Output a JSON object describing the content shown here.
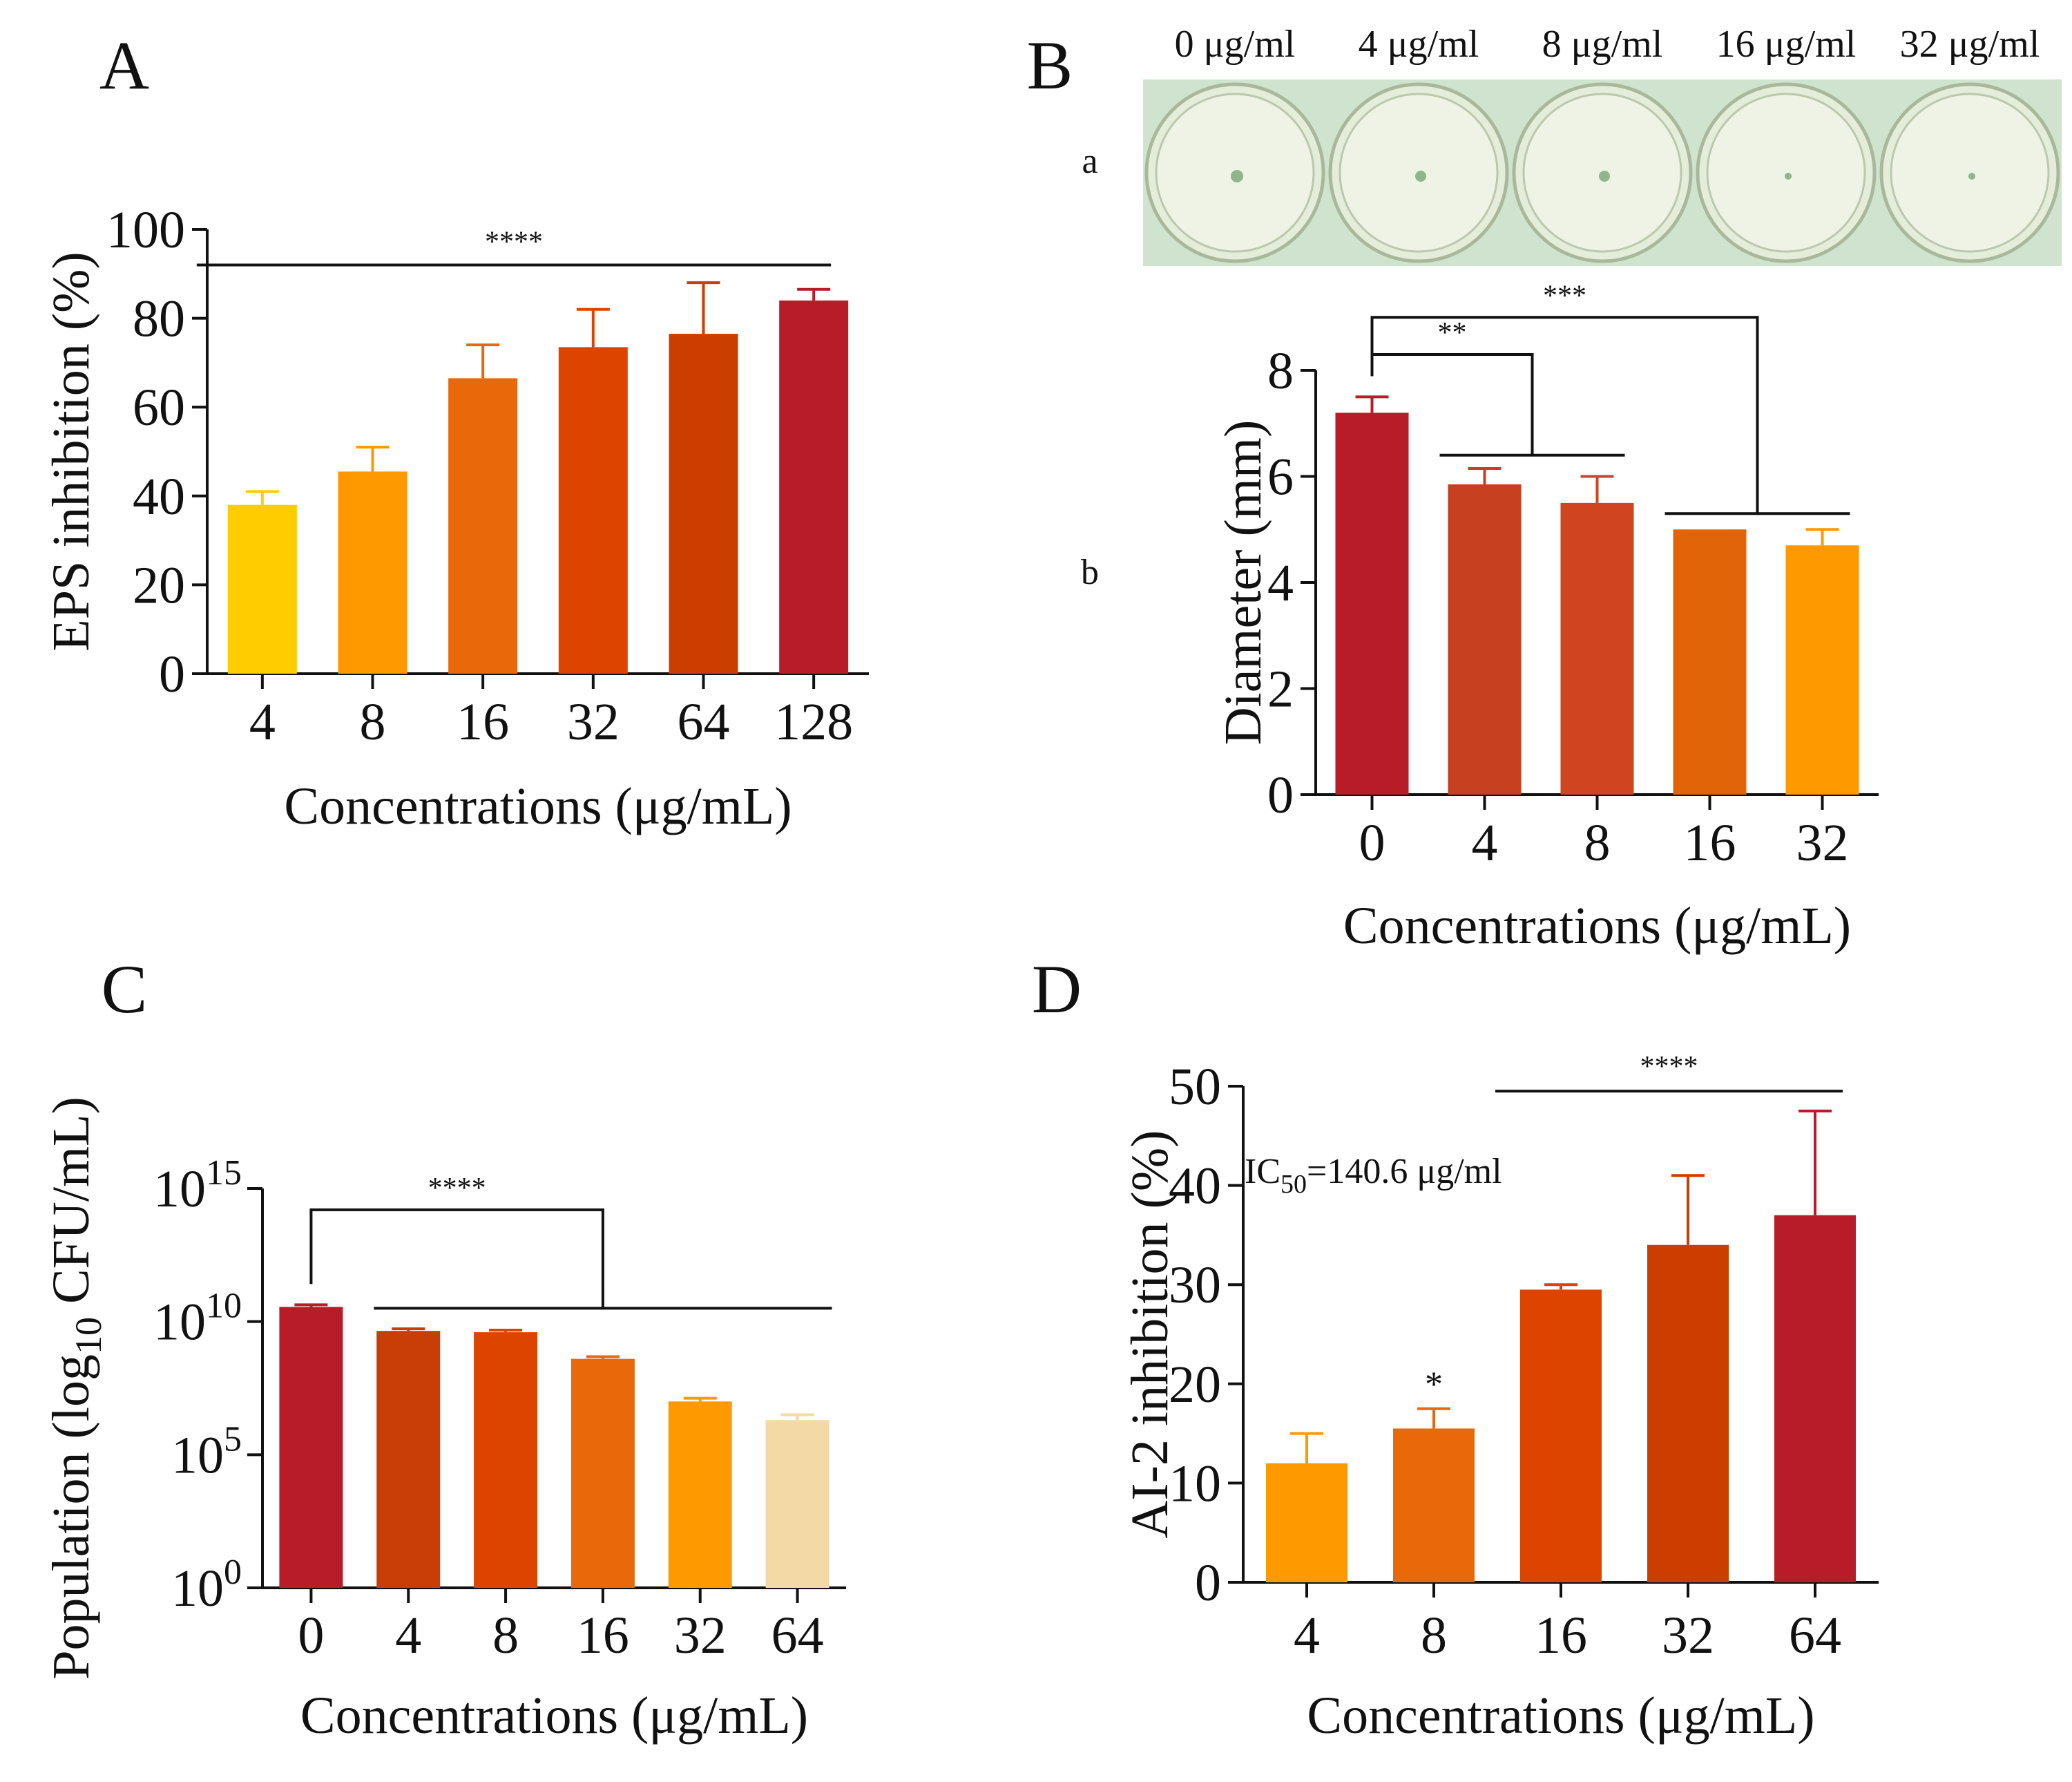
{
  "chart_data": [
    {
      "id": "A",
      "type": "bar",
      "panel_label": "A",
      "categories": [
        "4",
        "8",
        "16",
        "32",
        "64",
        "128"
      ],
      "values": [
        38,
        45.5,
        66.5,
        73.5,
        76.5,
        84
      ],
      "errors": [
        3,
        5.5,
        7.5,
        8.5,
        11.5,
        2.5
      ],
      "colors": [
        "#FFCC00",
        "#FF9900",
        "#E8680A",
        "#DD4400",
        "#CC3D00",
        "#B71C28"
      ],
      "xlabel": "Concentrations (μg/mL)",
      "ylabel": "EPS inhibition (%)",
      "ylim": [
        0,
        100
      ],
      "yticks": [
        "0",
        "20",
        "40",
        "60",
        "80",
        "100"
      ],
      "significance": [
        {
          "text": "****",
          "from": 0,
          "to": 5,
          "level": 92
        }
      ]
    },
    {
      "id": "B",
      "type": "bar",
      "panel_label": "B",
      "row_labels": [
        "a",
        "b"
      ],
      "plate_labels": [
        "0 μg/ml",
        "4 μg/ml",
        "8 μg/ml",
        "16 μg/ml",
        "32 μg/ml"
      ],
      "categories": [
        "0",
        "4",
        "8",
        "16",
        "32"
      ],
      "values": [
        7.2,
        5.85,
        5.5,
        5.0,
        4.7
      ],
      "errors": [
        0.3,
        0.3,
        0.5,
        0,
        0.3
      ],
      "colors": [
        "#B71C28",
        "#C7401F",
        "#D04420",
        "#E26408",
        "#FF9900"
      ],
      "xlabel": "Concentrations (μg/mL)",
      "ylabel": "Diameter (mm)",
      "ylim": [
        0,
        8
      ],
      "yticks": [
        "0",
        "2",
        "4",
        "6",
        "8"
      ],
      "significance": [
        {
          "text": "**",
          "control": 0,
          "group": [
            1,
            2
          ],
          "group_level": 6.4,
          "top": 8.3
        },
        {
          "text": "***",
          "control": 0,
          "group": [
            3,
            4
          ],
          "group_level": 5.3,
          "top": 9.0
        }
      ]
    },
    {
      "id": "C",
      "type": "bar",
      "panel_label": "C",
      "categories": [
        "0",
        "4",
        "8",
        "16",
        "32",
        "64"
      ],
      "values": [
        10.55,
        9.65,
        9.6,
        8.6,
        7.0,
        6.3
      ],
      "errors": [
        0.08,
        0.08,
        0.08,
        0.08,
        0.12,
        0.2
      ],
      "colors": [
        "#B71C28",
        "#C93D07",
        "#DD4400",
        "#E8680A",
        "#FF9900",
        "#F3D9A6"
      ],
      "xlabel": "Concentrations (μg/mL)",
      "ylabel": "Population (log10 CFU/mL)",
      "ylabel_parts": [
        "Population (log",
        "10",
        " CFU/mL)"
      ],
      "yscale": "log10",
      "ylim": [
        0,
        15
      ],
      "yticks": [
        {
          "base": "10",
          "exp": "0"
        },
        {
          "base": "10",
          "exp": "5"
        },
        {
          "base": "10",
          "exp": "10"
        },
        {
          "base": "10",
          "exp": "15"
        }
      ],
      "significance": [
        {
          "text": "****",
          "text_color": "#1A237E",
          "control": 0,
          "group": [
            1,
            5
          ],
          "group_level": 10.5,
          "top": 14.2
        }
      ]
    },
    {
      "id": "D",
      "type": "bar",
      "panel_label": "D",
      "categories": [
        "4",
        "8",
        "16",
        "32",
        "64"
      ],
      "values": [
        12,
        15.5,
        29.5,
        34,
        37
      ],
      "errors": [
        3,
        2,
        0.5,
        7,
        10.5
      ],
      "colors": [
        "#FF9900",
        "#E8680A",
        "#DD4400",
        "#CC3D00",
        "#B71C28"
      ],
      "xlabel": "Concentrations (μg/mL)",
      "ylabel": "AI-2 inhibition (%)",
      "ylim": [
        0,
        50
      ],
      "yticks": [
        "0",
        "10",
        "20",
        "30",
        "40",
        "50"
      ],
      "annotation": {
        "prefix": "IC",
        "sub": "50",
        "rest": "=140.6 μg/ml"
      },
      "significance": [
        {
          "text": "*",
          "bar": 1
        },
        {
          "text": "****",
          "from": 2,
          "to": 4,
          "level": 49.5
        }
      ]
    }
  ]
}
